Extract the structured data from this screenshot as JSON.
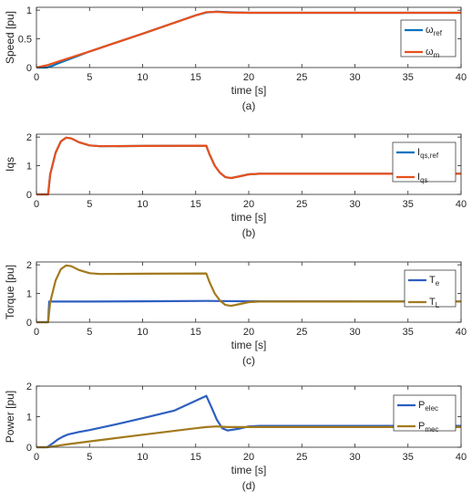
{
  "chart_data": [
    {
      "type": "line",
      "ylabel": "Speed [pu]",
      "xlabel": "time [s]",
      "caption": "(a)",
      "xlim": [
        0,
        40
      ],
      "ylim": [
        0,
        1.05
      ],
      "xticks": [
        0,
        5,
        10,
        15,
        20,
        25,
        30,
        35,
        40
      ],
      "yticks": [
        0,
        0.5,
        1
      ],
      "ytick_labels": [
        "0",
        "0.5",
        "1"
      ],
      "legend": "right",
      "series": [
        {
          "name": "ω",
          "sub": "ref",
          "color": "#0072BD",
          "points": [
            [
              0,
              0
            ],
            [
              1,
              0
            ],
            [
              1.5,
              0.03
            ],
            [
              2,
              0.07
            ],
            [
              3,
              0.14
            ],
            [
              4,
              0.21
            ],
            [
              5,
              0.28
            ],
            [
              10,
              0.59
            ],
            [
              15,
              0.91
            ],
            [
              16,
              0.96
            ],
            [
              17,
              0.975
            ],
            [
              18,
              0.965
            ],
            [
              20,
              0.955
            ],
            [
              40,
              0.955
            ]
          ]
        },
        {
          "name": "ω",
          "sub": "m",
          "color": "#E8501C",
          "points": [
            [
              0,
              0
            ],
            [
              0.5,
              0.02
            ],
            [
              1,
              0.04
            ],
            [
              2,
              0.1
            ],
            [
              3,
              0.16
            ],
            [
              4,
              0.22
            ],
            [
              5,
              0.28
            ],
            [
              10,
              0.59
            ],
            [
              15,
              0.91
            ],
            [
              16,
              0.965
            ],
            [
              17,
              0.97
            ],
            [
              18,
              0.96
            ],
            [
              20,
              0.955
            ],
            [
              40,
              0.955
            ]
          ]
        }
      ]
    },
    {
      "type": "line",
      "ylabel": "Iqs",
      "xlabel": "time [s]",
      "caption": "(b)",
      "xlim": [
        0,
        40
      ],
      "ylim": [
        0,
        2.1
      ],
      "xticks": [
        0,
        5,
        10,
        15,
        20,
        25,
        30,
        35,
        40
      ],
      "yticks": [
        0,
        1,
        2
      ],
      "ytick_labels": [
        "0",
        "1",
        "2"
      ],
      "legend": "right",
      "series": [
        {
          "name": "I",
          "sub": "qs,ref",
          "color": "#0072BD",
          "points": [
            [
              0,
              0
            ],
            [
              1.1,
              0
            ],
            [
              1.3,
              0.7
            ],
            [
              1.8,
              1.45
            ],
            [
              2.3,
              1.85
            ],
            [
              2.8,
              1.98
            ],
            [
              3.3,
              1.95
            ],
            [
              4,
              1.82
            ],
            [
              5,
              1.71
            ],
            [
              6,
              1.68
            ],
            [
              10,
              1.69
            ],
            [
              16,
              1.7
            ],
            [
              16.3,
              1.4
            ],
            [
              16.8,
              1.0
            ],
            [
              17.3,
              0.75
            ],
            [
              17.8,
              0.6
            ],
            [
              18.3,
              0.57
            ],
            [
              19,
              0.62
            ],
            [
              20,
              0.7
            ],
            [
              21,
              0.72
            ],
            [
              40,
              0.72
            ]
          ]
        },
        {
          "name": "I",
          "sub": "qs",
          "color": "#E8501C",
          "points": [
            [
              0,
              0
            ],
            [
              1.1,
              0
            ],
            [
              1.3,
              0.7
            ],
            [
              1.8,
              1.45
            ],
            [
              2.3,
              1.85
            ],
            [
              2.8,
              1.98
            ],
            [
              3.3,
              1.95
            ],
            [
              4,
              1.82
            ],
            [
              5,
              1.71
            ],
            [
              6,
              1.68
            ],
            [
              10,
              1.69
            ],
            [
              16,
              1.7
            ],
            [
              16.3,
              1.4
            ],
            [
              16.8,
              1.0
            ],
            [
              17.3,
              0.75
            ],
            [
              17.8,
              0.6
            ],
            [
              18.3,
              0.57
            ],
            [
              19,
              0.62
            ],
            [
              20,
              0.7
            ],
            [
              21,
              0.72
            ],
            [
              40,
              0.72
            ]
          ]
        }
      ]
    },
    {
      "type": "line",
      "ylabel": "Torque [pu]",
      "xlabel": "time [s]",
      "caption": "(c)",
      "xlim": [
        0,
        40
      ],
      "ylim": [
        0,
        2.1
      ],
      "xticks": [
        0,
        5,
        10,
        15,
        20,
        25,
        30,
        35,
        40
      ],
      "yticks": [
        0,
        1,
        2
      ],
      "ytick_labels": [
        "0",
        "1",
        "2"
      ],
      "legend": "right",
      "series": [
        {
          "name": "T",
          "sub": "e",
          "color": "#2E5FC0",
          "points": [
            [
              0,
              0
            ],
            [
              1.1,
              0
            ],
            [
              1.2,
              0.72
            ],
            [
              5,
              0.72
            ],
            [
              10,
              0.73
            ],
            [
              16,
              0.74
            ],
            [
              20,
              0.73
            ],
            [
              40,
              0.72
            ]
          ]
        },
        {
          "name": "T",
          "sub": "L",
          "color": "#A27A1E",
          "points": [
            [
              0,
              0
            ],
            [
              1.1,
              0
            ],
            [
              1.3,
              0.7
            ],
            [
              1.8,
              1.45
            ],
            [
              2.3,
              1.85
            ],
            [
              2.8,
              1.98
            ],
            [
              3.3,
              1.95
            ],
            [
              4,
              1.82
            ],
            [
              5,
              1.71
            ],
            [
              6,
              1.68
            ],
            [
              10,
              1.69
            ],
            [
              16,
              1.7
            ],
            [
              16.3,
              1.4
            ],
            [
              16.8,
              1.0
            ],
            [
              17.3,
              0.75
            ],
            [
              17.8,
              0.6
            ],
            [
              18.3,
              0.57
            ],
            [
              19,
              0.62
            ],
            [
              20,
              0.7
            ],
            [
              21,
              0.72
            ],
            [
              40,
              0.72
            ]
          ]
        }
      ]
    },
    {
      "type": "line",
      "ylabel": "Power [pu]",
      "xlabel": "time [s]",
      "caption": "(d)",
      "xlim": [
        0,
        40
      ],
      "ylim": [
        0,
        2
      ],
      "xticks": [
        0,
        5,
        10,
        15,
        20,
        25,
        30,
        35,
        40
      ],
      "yticks": [
        0,
        1,
        2
      ],
      "ytick_labels": [
        "0",
        "1",
        "2"
      ],
      "legend": "right",
      "series": [
        {
          "name": "P",
          "sub": "elec",
          "color": "#2E5FC0",
          "points": [
            [
              0,
              0
            ],
            [
              1,
              0
            ],
            [
              1.5,
              0.12
            ],
            [
              2,
              0.25
            ],
            [
              2.5,
              0.35
            ],
            [
              3,
              0.42
            ],
            [
              4,
              0.5
            ],
            [
              5,
              0.56
            ],
            [
              7,
              0.71
            ],
            [
              10,
              0.95
            ],
            [
              13,
              1.2
            ],
            [
              16,
              1.68
            ],
            [
              16.5,
              1.3
            ],
            [
              17,
              0.9
            ],
            [
              17.5,
              0.62
            ],
            [
              18,
              0.55
            ],
            [
              19,
              0.6
            ],
            [
              20,
              0.68
            ],
            [
              21,
              0.7
            ],
            [
              40,
              0.7
            ]
          ]
        },
        {
          "name": "P",
          "sub": "mec",
          "color": "#A27A1E",
          "points": [
            [
              0,
              0
            ],
            [
              1,
              0
            ],
            [
              2,
              0.05
            ],
            [
              3,
              0.1
            ],
            [
              5,
              0.19
            ],
            [
              10,
              0.41
            ],
            [
              15,
              0.62
            ],
            [
              16,
              0.66
            ],
            [
              17,
              0.68
            ],
            [
              18,
              0.66
            ],
            [
              20,
              0.66
            ],
            [
              40,
              0.66
            ]
          ]
        }
      ]
    }
  ]
}
